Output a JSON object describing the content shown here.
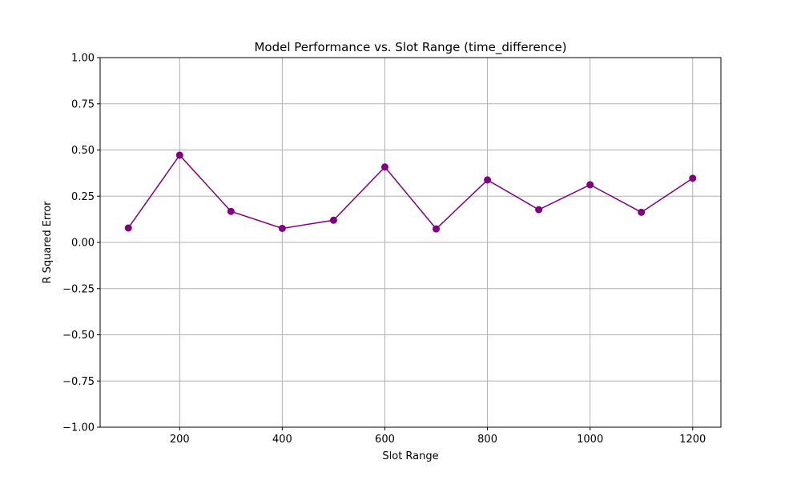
{
  "chart_data": {
    "type": "line",
    "title": "Model Performance vs. Slot Range (time_difference)",
    "xlabel": "Slot Range",
    "ylabel": "R Squared Error",
    "xlim": [
      45,
      1255
    ],
    "ylim": [
      -1.0,
      1.0
    ],
    "xticks": [
      200,
      400,
      600,
      800,
      1000,
      1200
    ],
    "yticks": [
      -1.0,
      -0.75,
      -0.5,
      -0.25,
      0.0,
      0.25,
      0.5,
      0.75,
      1.0
    ],
    "xtick_labels": [
      "200",
      "400",
      "600",
      "800",
      "1000",
      "1200"
    ],
    "ytick_labels": [
      "−1.00",
      "−0.75",
      "−0.50",
      "−0.25",
      "0.00",
      "0.25",
      "0.50",
      "0.75",
      "1.00"
    ],
    "grid": true,
    "color": "#800080",
    "series": [
      {
        "x": [
          100,
          200,
          300,
          400,
          500,
          600,
          700,
          800,
          900,
          1000,
          1100,
          1200
        ],
        "values": [
          0.078,
          0.472,
          0.168,
          0.076,
          0.12,
          0.408,
          0.073,
          0.338,
          0.177,
          0.312,
          0.163,
          0.347
        ]
      }
    ]
  }
}
